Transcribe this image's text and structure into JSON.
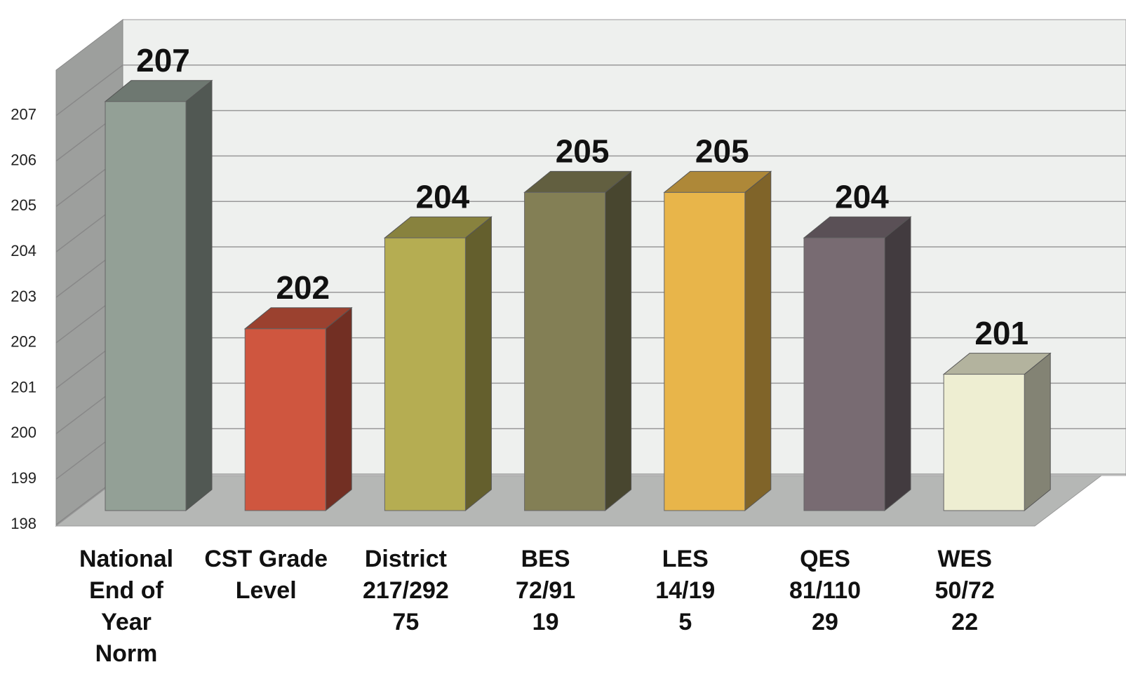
{
  "chart_data": {
    "type": "bar3d",
    "categories": [
      [
        "National",
        "End of",
        "Year",
        "Norm"
      ],
      [
        "CST Grade",
        "Level"
      ],
      [
        "District",
        "217/292",
        "75"
      ],
      [
        "BES",
        "72/91",
        "19"
      ],
      [
        "LES",
        "14/19",
        "5"
      ],
      [
        "QES",
        "81/110",
        "29"
      ],
      [
        "WES",
        "50/72",
        "22"
      ]
    ],
    "values": [
      207,
      202,
      204,
      205,
      205,
      204,
      201
    ],
    "colors": [
      "#93a096",
      "#cf563f",
      "#b5ad52",
      "#837f55",
      "#e8b54a",
      "#786b72",
      "#eeeed2"
    ],
    "ylim": [
      198,
      208
    ],
    "yticks": [
      198,
      199,
      200,
      201,
      202,
      203,
      204,
      205,
      206,
      207
    ],
    "grid": true
  }
}
